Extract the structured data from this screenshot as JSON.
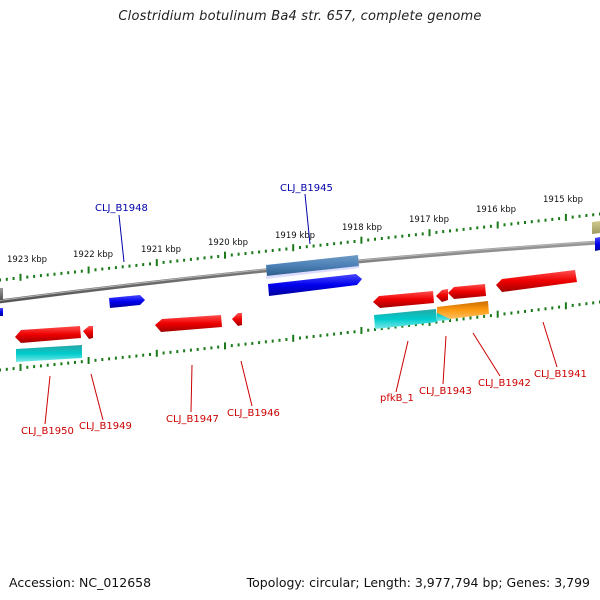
{
  "title": "Clostridium botulinum Ba4 str. 657, complete genome",
  "footer": {
    "accession": "Accession: NC_012658",
    "summary": "Topology: circular; Length: 3,977,794 bp; Genes: 3,799"
  },
  "scale_ticks": [
    "1923 kbp",
    "1922 kbp",
    "1921 kbp",
    "1920 kbp",
    "1919 kbp",
    "1918 kbp",
    "1917 kbp",
    "1916 kbp",
    "1915 kbp"
  ],
  "genes_forward": [
    "CLJ_B1948",
    "CLJ_B1945"
  ],
  "genes_reverse": [
    "CLJ_B1950",
    "CLJ_B1949",
    "CLJ_B1947",
    "CLJ_B1946",
    "pfkB_1",
    "CLJ_B1943",
    "CLJ_B1942",
    "CLJ_B1941"
  ],
  "colors": {
    "forward_gene": "#0000ee",
    "reverse_gene": "#ee0000",
    "forward_label": "#0000aa",
    "reverse_label": "#cc0000",
    "tick": "#1a7a1a",
    "backbone": "#777777"
  }
}
